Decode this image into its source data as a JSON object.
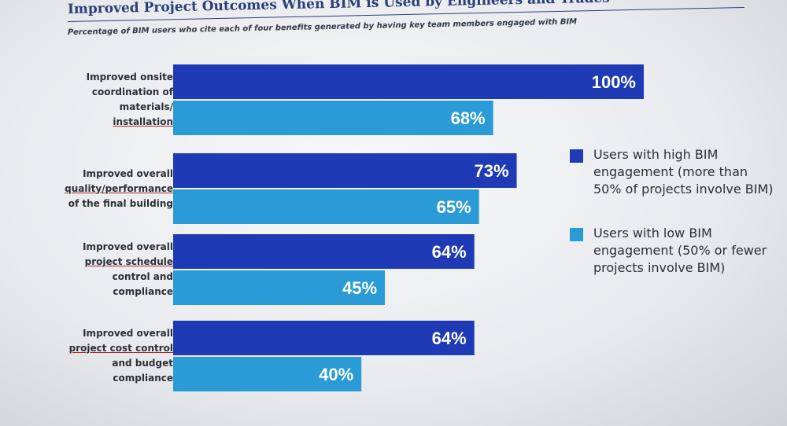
{
  "chart_data": {
    "type": "bar",
    "orientation": "horizontal",
    "title": "Improved Project Outcomes When BIM is Used by Engineers and Trades",
    "subtitle": "Percentage of BIM users who cite each of four benefits generated by having key team members engaged with BIM",
    "categories": [
      [
        "Improved onsite",
        "coordination of",
        "materials/",
        "installation"
      ],
      [
        "Improved overall",
        "quality/performance",
        "of the final building"
      ],
      [
        "Improved overall",
        "project schedule",
        "control and",
        "compliance"
      ],
      [
        "Improved overall",
        "project cost control",
        "and budget",
        "compliance"
      ]
    ],
    "series": [
      {
        "name": "Users with high BIM engagement (more than 50% of projects involve BIM)",
        "color": "#1f3ab5",
        "values": [
          100,
          73,
          64,
          64
        ],
        "labels": [
          "100%",
          "73%",
          "64%",
          "64%"
        ]
      },
      {
        "name": "Users with low BIM engagement (50% or fewer projects involve BIM)",
        "color": "#2a9bd7",
        "values": [
          68,
          65,
          45,
          40
        ],
        "labels": [
          "68%",
          "65%",
          "45%",
          "40%"
        ]
      }
    ],
    "xlim": [
      0,
      100
    ],
    "grid": false,
    "legend": "right"
  }
}
